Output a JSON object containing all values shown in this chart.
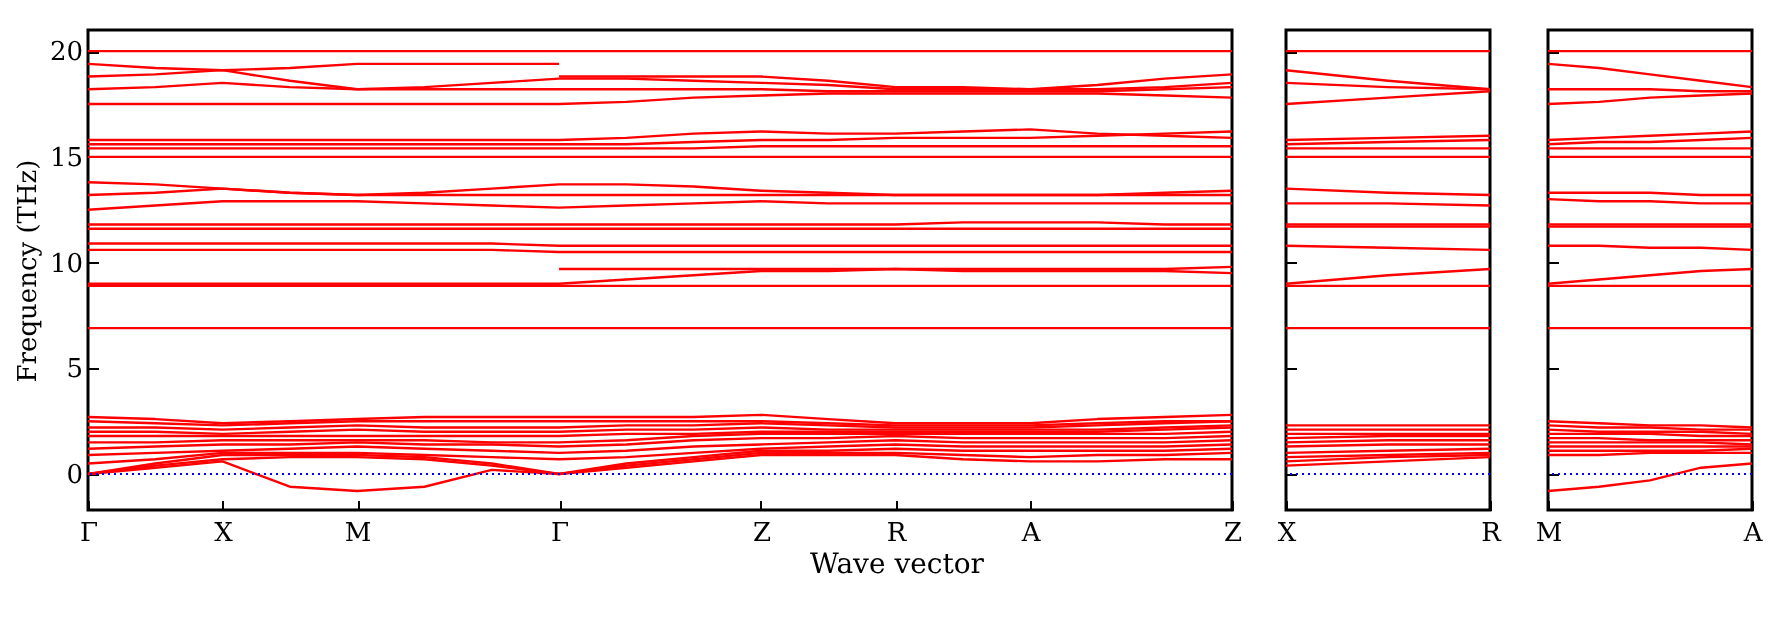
{
  "chart_data": [
    {
      "type": "line",
      "ylabel": "Frequency (THz)",
      "xlabel": "Wave vector",
      "ylim": [
        -1.7,
        21
      ],
      "yticks": [
        0,
        5,
        10,
        15,
        20
      ],
      "categories": [
        "Γ",
        null,
        "X",
        null,
        "M",
        null,
        null,
        "Γ",
        null,
        null,
        "Z",
        null,
        "R",
        null,
        "A",
        null,
        null,
        "Z"
      ],
      "ref_lines": [
        {
          "axis": "y",
          "value": 0,
          "color": "#0000ff",
          "line_style": "dotted"
        }
      ],
      "series": [
        {
          "color": "#ff0000",
          "values": [
            20,
            20,
            20,
            20,
            20,
            20,
            20,
            20,
            20,
            20,
            20,
            20,
            20,
            20,
            20,
            20,
            20,
            20
          ]
        },
        {
          "color": "#ff0000",
          "values": [
            15.0,
            15.0,
            15.0,
            15.0,
            15.0,
            15.0,
            15.0,
            15.0,
            15.0,
            15.0,
            15.0,
            15.0,
            15.0,
            15.0,
            15.0,
            15.0,
            15.0,
            15.0
          ]
        },
        {
          "color": "#ff0000",
          "values": [
            11.8,
            11.8,
            11.8,
            11.8,
            11.8,
            11.8,
            11.8,
            11.8,
            11.8,
            11.8,
            11.8,
            11.8,
            11.8,
            11.9,
            11.9,
            11.9,
            11.8,
            11.8
          ]
        },
        {
          "color": "#ff0000",
          "values": [
            11.6,
            11.6,
            11.6,
            11.6,
            11.6,
            11.6,
            11.6,
            11.6,
            11.6,
            11.6,
            11.6,
            11.6,
            11.6,
            11.6,
            11.6,
            11.6,
            11.6,
            11.6
          ]
        },
        {
          "color": "#ff0000",
          "values": [
            8.9,
            8.9,
            8.9,
            8.9,
            8.9,
            8.9,
            8.9,
            8.9,
            8.9,
            8.9,
            8.9,
            8.9,
            8.9,
            8.9,
            8.9,
            8.9,
            8.9,
            8.9
          ]
        },
        {
          "color": "#ff0000",
          "values": [
            6.9,
            6.9,
            6.9,
            6.9,
            6.9,
            6.9,
            6.9,
            6.9,
            6.9,
            6.9,
            6.9,
            6.9,
            6.9,
            6.9,
            6.9,
            6.9,
            6.9,
            6.9
          ]
        },
        {
          "color": "#ff0000",
          "values": [
            19.4,
            19.2,
            19.1,
            19.2,
            19.4,
            19.4,
            19.4,
            19.4,
            null,
            null,
            null,
            null,
            null,
            null,
            null,
            null,
            null,
            null
          ]
        },
        {
          "color": "#ff0000",
          "values": [
            18.8,
            18.9,
            19.1,
            18.6,
            18.2,
            18.3,
            18.5,
            18.7,
            18.7,
            18.6,
            18.5,
            18.4,
            18.2,
            18.2,
            18.2,
            18.2,
            18.3,
            18.5
          ]
        },
        {
          "color": "#ff0000",
          "values": [
            18.2,
            18.3,
            18.5,
            18.3,
            18.2,
            18.2,
            18.2,
            18.2,
            18.2,
            18.2,
            18.2,
            18.1,
            18.1,
            18.1,
            18.1,
            18.1,
            18.2,
            18.3
          ]
        },
        {
          "color": "#ff0000",
          "values": [
            null,
            null,
            null,
            null,
            null,
            null,
            null,
            18.8,
            18.8,
            18.8,
            18.8,
            18.6,
            18.3,
            18.3,
            18.2,
            18.4,
            18.7,
            18.9
          ]
        },
        {
          "color": "#ff0000",
          "values": [
            17.5,
            17.5,
            17.5,
            17.5,
            17.5,
            17.5,
            17.5,
            17.5,
            17.6,
            17.8,
            17.9,
            18.0,
            18.0,
            18.0,
            18.0,
            18.0,
            17.9,
            17.8
          ]
        },
        {
          "color": "#ff0000",
          "values": [
            15.8,
            15.8,
            15.8,
            15.8,
            15.8,
            15.8,
            15.8,
            15.8,
            15.9,
            16.1,
            16.2,
            16.1,
            16.1,
            16.2,
            16.3,
            16.1,
            16.0,
            15.9
          ]
        },
        {
          "color": "#ff0000",
          "values": [
            15.6,
            15.6,
            15.6,
            15.6,
            15.6,
            15.6,
            15.6,
            15.6,
            15.6,
            15.7,
            15.8,
            15.8,
            15.9,
            15.9,
            15.9,
            16.0,
            16.1,
            16.2
          ]
        },
        {
          "color": "#ff0000",
          "values": [
            15.4,
            15.4,
            15.4,
            15.4,
            15.4,
            15.4,
            15.4,
            15.4,
            15.4,
            15.4,
            15.5,
            15.5,
            15.5,
            15.5,
            15.5,
            15.5,
            15.5,
            15.5
          ]
        },
        {
          "color": "#ff0000",
          "values": [
            13.8,
            13.7,
            13.5,
            13.3,
            13.2,
            13.3,
            13.5,
            13.7,
            13.7,
            13.6,
            13.4,
            13.3,
            13.2,
            13.2,
            13.2,
            13.2,
            13.3,
            13.4
          ]
        },
        {
          "color": "#ff0000",
          "values": [
            13.2,
            13.3,
            13.5,
            13.3,
            13.2,
            13.2,
            13.2,
            13.2,
            13.2,
            13.2,
            13.2,
            13.2,
            13.2,
            13.2,
            13.2,
            13.2,
            13.2,
            13.2
          ]
        },
        {
          "color": "#ff0000",
          "values": [
            12.5,
            12.7,
            12.9,
            12.9,
            12.9,
            12.8,
            12.7,
            12.6,
            12.7,
            12.8,
            12.9,
            12.8,
            12.8,
            12.8,
            12.8,
            12.8,
            12.8,
            12.8
          ]
        },
        {
          "color": "#ff0000",
          "values": [
            10.9,
            10.9,
            10.9,
            10.9,
            10.9,
            10.9,
            10.9,
            10.8,
            10.8,
            10.8,
            10.8,
            10.8,
            10.8,
            10.8,
            10.8,
            10.8,
            10.8,
            10.8
          ]
        },
        {
          "color": "#ff0000",
          "values": [
            10.6,
            10.6,
            10.6,
            10.6,
            10.6,
            10.6,
            10.6,
            10.5,
            10.5,
            10.5,
            10.5,
            10.5,
            10.5,
            10.5,
            10.5,
            10.5,
            10.5,
            10.5
          ]
        },
        {
          "color": "#ff0000",
          "values": [
            null,
            null,
            null,
            null,
            null,
            null,
            null,
            9.7,
            9.7,
            9.7,
            9.7,
            9.7,
            9.7,
            9.7,
            9.7,
            9.7,
            9.7,
            9.8
          ]
        },
        {
          "color": "#ff0000",
          "values": [
            9.0,
            9.0,
            9.0,
            9.0,
            9.0,
            9.0,
            9.0,
            9.0,
            9.2,
            9.4,
            9.6,
            9.6,
            9.7,
            9.6,
            9.6,
            9.6,
            9.6,
            9.5
          ]
        },
        {
          "color": "#ff0000",
          "values": [
            0,
            0.3,
            0.6,
            -0.6,
            -0.8,
            -0.6,
            0.2,
            0,
            0.3,
            0.6,
            0.9,
            0.9,
            0.9,
            0.7,
            0.6,
            0.6,
            0.7,
            0.7
          ]
        },
        {
          "color": "#ff0000",
          "values": [
            0,
            0.4,
            0.7,
            0.8,
            0.8,
            0.7,
            0.4,
            0,
            0.4,
            0.7,
            1.0,
            1.0,
            1.0,
            0.9,
            0.8,
            0.9,
            0.9,
            1.0
          ]
        },
        {
          "color": "#ff0000",
          "values": [
            0,
            0.5,
            0.9,
            0.9,
            0.9,
            0.8,
            0.5,
            0,
            0.5,
            0.8,
            1.1,
            1.1,
            1.2,
            1.1,
            1.1,
            1.1,
            1.1,
            1.2
          ]
        },
        {
          "color": "#ff0000",
          "values": [
            0.5,
            0.7,
            1.0,
            1.0,
            1.0,
            0.9,
            0.8,
            0.7,
            0.8,
            1.0,
            1.2,
            1.3,
            1.4,
            1.3,
            1.3,
            1.3,
            1.3,
            1.4
          ]
        },
        {
          "color": "#ff0000",
          "values": [
            0.9,
            1.0,
            1.1,
            1.2,
            1.3,
            1.2,
            1.1,
            1.0,
            1.1,
            1.3,
            1.4,
            1.5,
            1.6,
            1.5,
            1.5,
            1.5,
            1.5,
            1.6
          ]
        },
        {
          "color": "#ff0000",
          "values": [
            1.2,
            1.3,
            1.4,
            1.4,
            1.5,
            1.4,
            1.4,
            1.3,
            1.4,
            1.6,
            1.7,
            1.7,
            1.8,
            1.7,
            1.7,
            1.7,
            1.7,
            1.8
          ]
        },
        {
          "color": "#ff0000",
          "values": [
            1.5,
            1.5,
            1.6,
            1.6,
            1.6,
            1.6,
            1.5,
            1.5,
            1.6,
            1.8,
            1.9,
            1.9,
            1.9,
            1.9,
            1.9,
            1.9,
            1.9,
            2.0
          ]
        },
        {
          "color": "#ff0000",
          "values": [
            1.8,
            1.8,
            1.8,
            1.8,
            1.8,
            1.8,
            1.8,
            1.8,
            1.9,
            1.9,
            2.0,
            2.0,
            2.0,
            2.0,
            2.0,
            2.0,
            2.1,
            2.2
          ]
        },
        {
          "color": "#ff0000",
          "values": [
            2.0,
            2.0,
            1.9,
            2.0,
            2.1,
            2.0,
            2.0,
            2.0,
            2.1,
            2.1,
            2.2,
            2.1,
            2.1,
            2.1,
            2.1,
            2.1,
            2.2,
            2.3
          ]
        },
        {
          "color": "#ff0000",
          "values": [
            2.2,
            2.2,
            2.1,
            2.2,
            2.3,
            2.2,
            2.2,
            2.2,
            2.3,
            2.3,
            2.4,
            2.3,
            2.2,
            2.2,
            2.2,
            2.3,
            2.4,
            2.5
          ]
        },
        {
          "color": "#ff0000",
          "values": [
            2.5,
            2.4,
            2.3,
            2.4,
            2.5,
            2.5,
            2.5,
            2.5,
            2.5,
            2.5,
            2.5,
            2.4,
            2.3,
            2.3,
            2.3,
            2.4,
            2.5,
            2.5
          ]
        },
        {
          "color": "#ff0000",
          "values": [
            2.7,
            2.6,
            2.4,
            2.5,
            2.6,
            2.7,
            2.7,
            2.7,
            2.7,
            2.7,
            2.8,
            2.6,
            2.4,
            2.4,
            2.4,
            2.6,
            2.7,
            2.8
          ]
        }
      ]
    },
    {
      "type": "line",
      "tick_labels": "x",
      "ylim": [
        -1.7,
        21
      ],
      "yticks": [
        0,
        5,
        10,
        15,
        20
      ],
      "categories": [
        "X",
        null,
        "R"
      ],
      "ref_lines": [
        {
          "axis": "y",
          "value": 0,
          "color": "#0000ff",
          "line_style": "dotted"
        }
      ],
      "series": [
        {
          "color": "#ff0000",
          "values": [
            20,
            20,
            20
          ]
        },
        {
          "color": "#ff0000",
          "values": [
            19.1,
            18.6,
            18.2
          ]
        },
        {
          "color": "#ff0000",
          "values": [
            18.5,
            18.3,
            18.2
          ]
        },
        {
          "color": "#ff0000",
          "values": [
            17.5,
            17.8,
            18.1
          ]
        },
        {
          "color": "#ff0000",
          "values": [
            15.8,
            15.9,
            16.0
          ]
        },
        {
          "color": "#ff0000",
          "values": [
            15.6,
            15.7,
            15.8
          ]
        },
        {
          "color": "#ff0000",
          "values": [
            15.4,
            15.4,
            15.4
          ]
        },
        {
          "color": "#ff0000",
          "values": [
            15.0,
            15.0,
            15.0
          ]
        },
        {
          "color": "#ff0000",
          "values": [
            13.5,
            13.3,
            13.2
          ]
        },
        {
          "color": "#ff0000",
          "values": [
            12.8,
            12.8,
            12.7
          ]
        },
        {
          "color": "#ff0000",
          "values": [
            11.8,
            11.8,
            11.8
          ]
        },
        {
          "color": "#ff0000",
          "values": [
            11.7,
            11.7,
            11.7
          ]
        },
        {
          "color": "#ff0000",
          "values": [
            10.8,
            10.7,
            10.6
          ]
        },
        {
          "color": "#ff0000",
          "values": [
            9.0,
            9.4,
            9.7
          ]
        },
        {
          "color": "#ff0000",
          "values": [
            8.9,
            8.9,
            8.9
          ]
        },
        {
          "color": "#ff0000",
          "values": [
            6.9,
            6.9,
            6.9
          ]
        },
        {
          "color": "#ff0000",
          "values": [
            2.3,
            2.3,
            2.3
          ]
        },
        {
          "color": "#ff0000",
          "values": [
            2.1,
            2.1,
            2.1
          ]
        },
        {
          "color": "#ff0000",
          "values": [
            1.9,
            1.9,
            1.9
          ]
        },
        {
          "color": "#ff0000",
          "values": [
            1.7,
            1.8,
            1.8
          ]
        },
        {
          "color": "#ff0000",
          "values": [
            1.5,
            1.6,
            1.6
          ]
        },
        {
          "color": "#ff0000",
          "values": [
            1.3,
            1.4,
            1.4
          ]
        },
        {
          "color": "#ff0000",
          "values": [
            1.0,
            1.1,
            1.2
          ]
        },
        {
          "color": "#ff0000",
          "values": [
            0.8,
            0.9,
            1.0
          ]
        },
        {
          "color": "#ff0000",
          "values": [
            0.6,
            0.8,
            0.9
          ]
        },
        {
          "color": "#ff0000",
          "values": [
            0.4,
            0.6,
            0.8
          ]
        }
      ]
    },
    {
      "type": "line",
      "tick_labels": "x",
      "ylim": [
        -1.7,
        21
      ],
      "yticks": [
        0,
        5,
        10,
        15,
        20
      ],
      "categories": [
        "M",
        null,
        null,
        null,
        "A"
      ],
      "ref_lines": [
        {
          "axis": "y",
          "value": 0,
          "color": "#0000ff",
          "line_style": "dotted"
        }
      ],
      "series": [
        {
          "color": "#ff0000",
          "values": [
            20,
            20,
            20,
            20,
            20
          ]
        },
        {
          "color": "#ff0000",
          "values": [
            19.4,
            19.2,
            18.9,
            18.6,
            18.3
          ]
        },
        {
          "color": "#ff0000",
          "values": [
            18.2,
            18.2,
            18.2,
            18.1,
            18.1
          ]
        },
        {
          "color": "#ff0000",
          "values": [
            17.5,
            17.6,
            17.8,
            17.9,
            18.0
          ]
        },
        {
          "color": "#ff0000",
          "values": [
            15.8,
            15.9,
            16.0,
            16.1,
            16.2
          ]
        },
        {
          "color": "#ff0000",
          "values": [
            15.6,
            15.7,
            15.7,
            15.8,
            15.9
          ]
        },
        {
          "color": "#ff0000",
          "values": [
            15.4,
            15.4,
            15.4,
            15.4,
            15.4
          ]
        },
        {
          "color": "#ff0000",
          "values": [
            15.0,
            15.0,
            15.0,
            15.0,
            15.0
          ]
        },
        {
          "color": "#ff0000",
          "values": [
            13.3,
            13.3,
            13.3,
            13.2,
            13.2
          ]
        },
        {
          "color": "#ff0000",
          "values": [
            13.0,
            12.9,
            12.9,
            12.8,
            12.8
          ]
        },
        {
          "color": "#ff0000",
          "values": [
            11.8,
            11.8,
            11.8,
            11.8,
            11.8
          ]
        },
        {
          "color": "#ff0000",
          "values": [
            11.7,
            11.7,
            11.7,
            11.7,
            11.7
          ]
        },
        {
          "color": "#ff0000",
          "values": [
            10.8,
            10.8,
            10.7,
            10.7,
            10.6
          ]
        },
        {
          "color": "#ff0000",
          "values": [
            9.0,
            9.2,
            9.4,
            9.6,
            9.7
          ]
        },
        {
          "color": "#ff0000",
          "values": [
            8.9,
            8.9,
            8.9,
            8.9,
            8.9
          ]
        },
        {
          "color": "#ff0000",
          "values": [
            6.9,
            6.9,
            6.9,
            6.9,
            6.9
          ]
        },
        {
          "color": "#ff0000",
          "values": [
            -0.8,
            -0.6,
            -0.3,
            0.3,
            0.5
          ]
        },
        {
          "color": "#ff0000",
          "values": [
            0.9,
            0.9,
            1.0,
            1.0,
            1.0
          ]
        },
        {
          "color": "#ff0000",
          "values": [
            1.1,
            1.1,
            1.1,
            1.1,
            1.2
          ]
        },
        {
          "color": "#ff0000",
          "values": [
            1.3,
            1.3,
            1.3,
            1.3,
            1.3
          ]
        },
        {
          "color": "#ff0000",
          "values": [
            1.5,
            1.5,
            1.5,
            1.5,
            1.4
          ]
        },
        {
          "color": "#ff0000",
          "values": [
            1.7,
            1.7,
            1.6,
            1.6,
            1.6
          ]
        },
        {
          "color": "#ff0000",
          "values": [
            1.9,
            1.9,
            1.9,
            1.8,
            1.8
          ]
        },
        {
          "color": "#ff0000",
          "values": [
            2.1,
            2.0,
            2.0,
            2.0,
            1.9
          ]
        },
        {
          "color": "#ff0000",
          "values": [
            2.3,
            2.2,
            2.2,
            2.1,
            2.1
          ]
        },
        {
          "color": "#ff0000",
          "values": [
            2.5,
            2.4,
            2.3,
            2.3,
            2.2
          ]
        }
      ]
    }
  ]
}
